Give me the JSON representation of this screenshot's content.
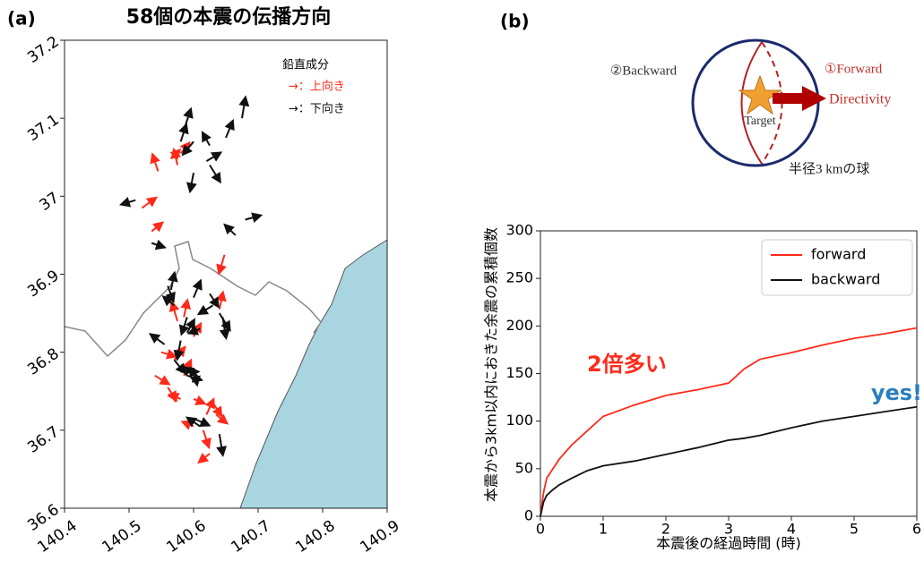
{
  "chart_data": [
    {
      "type": "quiver",
      "panel_label": "(a)",
      "title": "58個の本震の伝播方向",
      "legend_title": "鉛直成分",
      "xlim": [
        140.4,
        140.9
      ],
      "xticks": [
        140.4,
        140.5,
        140.6,
        140.7,
        140.8,
        140.9
      ],
      "ylim": [
        36.6,
        37.2
      ],
      "yticks": [
        36.6,
        36.7,
        36.8,
        36.9,
        37.0,
        37.1,
        37.2
      ],
      "series": [
        {
          "name": "→：上向き",
          "color": "#ff2a1a",
          "x": [
            140.545,
            140.565,
            140.575,
            140.58,
            140.52,
            140.535,
            140.648,
            140.575,
            140.6,
            140.55,
            140.57,
            140.585,
            140.54,
            140.56,
            140.58,
            140.6,
            140.62,
            140.63,
            140.635,
            140.615,
            140.625,
            140.6,
            140.64,
            140.585
          ],
          "y": [
            37.032,
            37.048,
            37.04,
            37.055,
            36.985,
            36.955,
            36.925,
            36.84,
            36.82,
            36.8,
            36.79,
            36.77,
            36.77,
            36.755,
            36.74,
            36.74,
            36.72,
            36.735,
            36.72,
            36.7,
            36.67,
            36.705,
            36.855,
            36.845
          ],
          "u": [
            -0.008,
            0.012,
            -0.005,
            0.012,
            0.02,
            0.015,
            -0.008,
            -0.008,
            0.01,
            0.02,
            0.015,
            0.01,
            0.02,
            0.012,
            -0.015,
            0.015,
            0.01,
            0.012,
            0.015,
            0.008,
            -0.015,
            -0.015,
            0.005,
            0.005
          ],
          "v": [
            0.02,
            0.01,
            0.018,
            0.012,
            0.012,
            0.01,
            -0.022,
            0.022,
            0.015,
            -0.005,
            0.015,
            0.018,
            -0.01,
            -0.015,
            0.005,
            -0.005,
            0.018,
            -0.015,
            -0.01,
            -0.02,
            -0.01,
            0.005,
            0.02,
            0.02
          ]
        },
        {
          "name": "→：下向き",
          "color": "#111111",
          "x": [
            140.585,
            140.58,
            140.6,
            140.625,
            140.62,
            140.625,
            140.65,
            140.675,
            140.6,
            140.51,
            140.535,
            140.665,
            140.68,
            140.56,
            140.565,
            140.57,
            140.59,
            140.6,
            140.61,
            140.625,
            140.63,
            140.64,
            140.645,
            140.58,
            140.555,
            140.57,
            140.58,
            140.59,
            140.6,
            140.61,
            140.6,
            140.64,
            140.59,
            140.6
          ],
          "y": [
            37.085,
            37.07,
            37.07,
            37.065,
            37.045,
            37.04,
            37.075,
            37.1,
            37.03,
            36.995,
            36.94,
            36.95,
            36.97,
            36.885,
            36.88,
            36.86,
            36.845,
            36.87,
            36.83,
            36.875,
            36.86,
            36.85,
            36.845,
            36.815,
            36.81,
            36.79,
            36.775,
            36.77,
            36.77,
            36.705,
            36.715,
            36.695,
            36.825,
            36.78
          ],
          "u": [
            0.01,
            0.008,
            -0.015,
            -0.01,
            0.02,
            0.015,
            0.01,
            0.005,
            -0.005,
            -0.02,
            0.018,
            -0.015,
            0.022,
            0.008,
            0.005,
            -0.015,
            -0.008,
            0.01,
            -0.015,
            0.012,
            -0.02,
            0.015,
            0.005,
            -0.005,
            -0.02,
            0.015,
            0.025,
            0.02,
            -0.015,
            -0.018,
            0.022,
            0.005,
            0.01,
            0.005
          ],
          "v": [
            0.025,
            0.02,
            -0.015,
            0.015,
            0.01,
            -0.02,
            0.02,
            0.025,
            -0.022,
            -0.005,
            -0.005,
            0.012,
            0.005,
            -0.018,
            0.02,
            0.01,
            -0.02,
            0.02,
            -0.005,
            -0.015,
            -0.01,
            -0.02,
            -0.025,
            -0.022,
            0.012,
            -0.015,
            0,
            -0.005,
            0.01,
            0.01,
            -0.008,
            -0.025,
            0.015,
            -0.02
          ]
        }
      ]
    },
    {
      "type": "line",
      "panel_label": "(b)",
      "x_label": "本震後の経過時間 (時)",
      "y_label": "本震から3km以内におきた余震の累積個数",
      "xlim": [
        0,
        6
      ],
      "xticks": [
        0,
        1,
        2,
        3,
        4,
        5,
        6
      ],
      "ylim": [
        0,
        300
      ],
      "yticks": [
        0,
        50,
        100,
        150,
        200,
        250,
        300
      ],
      "x": [
        0,
        0.05,
        0.1,
        0.2,
        0.3,
        0.5,
        0.75,
        1,
        1.5,
        2,
        2.5,
        3,
        3.25,
        3.5,
        4,
        4.5,
        5,
        5.5,
        6
      ],
      "series": [
        {
          "name": "forward",
          "color": "#ff2a1a",
          "values": [
            0,
            25,
            40,
            50,
            60,
            75,
            90,
            105,
            117,
            127,
            133,
            140,
            155,
            165,
            172,
            180,
            187,
            192,
            198
          ]
        },
        {
          "name": "backward",
          "color": "#111111",
          "values": [
            0,
            15,
            22,
            28,
            33,
            40,
            48,
            53,
            58,
            65,
            72,
            80,
            82,
            85,
            93,
            100,
            105,
            110,
            115
          ]
        }
      ],
      "annotations": [
        {
          "text": "2倍多い",
          "color": "#ff2a1a"
        },
        {
          "text": "yes!",
          "color": "#2a7fbf"
        }
      ]
    }
  ],
  "diagram": {
    "backward": "②Backward",
    "forward": "①Forward",
    "directivity": "Directivity",
    "target": "Target",
    "sphere": "半径3 kmの球"
  }
}
